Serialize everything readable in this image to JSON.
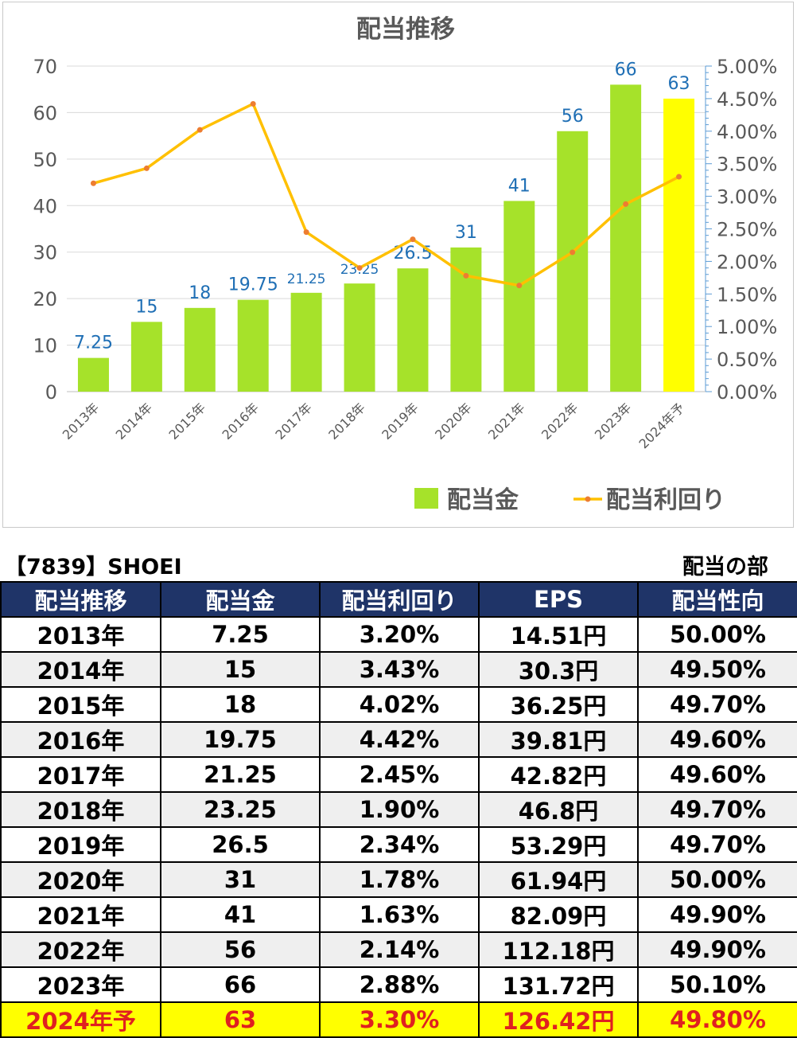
{
  "chart_data": {
    "type": "bar",
    "title": "配当推移",
    "categories": [
      "2013年",
      "2014年",
      "2015年",
      "2016年",
      "2017年",
      "2018年",
      "2019年",
      "2020年",
      "2021年",
      "2022年",
      "2023年",
      "2024年予"
    ],
    "series": [
      {
        "name": "配当金",
        "type": "bar",
        "axis": "left",
        "values": [
          7.25,
          15,
          18,
          19.75,
          21.25,
          23.25,
          26.5,
          31,
          41,
          56,
          66,
          63
        ],
        "labels": [
          "7.25",
          "15",
          "18",
          "19.75",
          "21.25",
          "23.25",
          "26.5",
          "31",
          "41",
          "56",
          "66",
          "63"
        ]
      },
      {
        "name": "配当利回り",
        "type": "line",
        "axis": "right",
        "values": [
          3.2,
          3.43,
          4.02,
          4.42,
          2.45,
          1.9,
          2.34,
          1.78,
          1.63,
          2.14,
          2.88,
          3.3
        ]
      }
    ],
    "ylim": [
      0,
      70
    ],
    "yticks": [
      "0",
      "10",
      "20",
      "30",
      "40",
      "50",
      "60",
      "70"
    ],
    "y2lim": [
      0,
      5
    ],
    "y2ticks": [
      "0.00%",
      "0.50%",
      "1.00%",
      "1.50%",
      "2.00%",
      "2.50%",
      "3.00%",
      "3.50%",
      "4.00%",
      "4.50%",
      "5.00%"
    ],
    "grid": true,
    "legend": "bottom-right",
    "colors": {
      "bar": "#a6e22a",
      "bar_forecast": "#ffff00",
      "line": "#ffc000",
      "marker": "#ed7d31",
      "label": "#1f6fb5",
      "axis_text": "#595959"
    }
  },
  "info": {
    "ticker": "【7839】SHOEI",
    "section": "配当の部"
  },
  "table": {
    "headers": [
      "配当推移",
      "配当金",
      "配当利回り",
      "EPS",
      "配当性向"
    ],
    "rows": [
      [
        "2013年",
        "7.25",
        "3.20%",
        "14.51円",
        "50.00%"
      ],
      [
        "2014年",
        "15",
        "3.43%",
        "30.3円",
        "49.50%"
      ],
      [
        "2015年",
        "18",
        "4.02%",
        "36.25円",
        "49.70%"
      ],
      [
        "2016年",
        "19.75",
        "4.42%",
        "39.81円",
        "49.60%"
      ],
      [
        "2017年",
        "21.25",
        "2.45%",
        "42.82円",
        "49.60%"
      ],
      [
        "2018年",
        "23.25",
        "1.90%",
        "46.8円",
        "49.70%"
      ],
      [
        "2019年",
        "26.5",
        "2.34%",
        "53.29円",
        "49.70%"
      ],
      [
        "2020年",
        "31",
        "1.78%",
        "61.94円",
        "50.00%"
      ],
      [
        "2021年",
        "41",
        "1.63%",
        "82.09円",
        "49.90%"
      ],
      [
        "2022年",
        "56",
        "2.14%",
        "112.18円",
        "49.90%"
      ],
      [
        "2023年",
        "66",
        "2.88%",
        "131.72円",
        "50.10%"
      ],
      [
        "2024年予",
        "63",
        "3.30%",
        "126.42円",
        "49.80%"
      ]
    ]
  }
}
